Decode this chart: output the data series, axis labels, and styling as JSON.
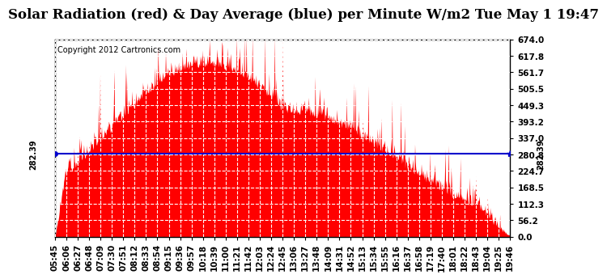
{
  "title": "Solar Radiation (red) & Day Average (blue) per Minute W/m2 Tue May 1 19:47",
  "copyright_text": "Copyright 2012 Cartronics.com",
  "avg_value": 282.39,
  "y_max": 674.0,
  "y_min": 0.0,
  "y_ticks": [
    0.0,
    56.2,
    112.3,
    168.5,
    224.7,
    280.8,
    337.0,
    393.2,
    449.3,
    505.5,
    561.7,
    617.8,
    674.0
  ],
  "fill_color": "#FF0000",
  "line_color": "#0000CC",
  "avg_label": "282.39",
  "background_color": "#FFFFFF",
  "plot_bg_color": "#FFFFFF",
  "x_labels": [
    "05:45",
    "06:06",
    "06:27",
    "06:48",
    "07:09",
    "07:30",
    "07:51",
    "08:12",
    "08:33",
    "08:54",
    "09:15",
    "09:36",
    "09:57",
    "10:18",
    "10:39",
    "11:00",
    "11:21",
    "11:42",
    "12:03",
    "12:24",
    "12:45",
    "13:06",
    "13:27",
    "13:48",
    "14:09",
    "14:31",
    "14:52",
    "15:13",
    "15:34",
    "15:55",
    "16:16",
    "16:37",
    "16:58",
    "17:19",
    "17:40",
    "18:01",
    "18:22",
    "18:43",
    "19:04",
    "19:25",
    "19:46"
  ],
  "title_fontsize": 12,
  "tick_fontsize": 7.5,
  "avg_fontsize": 7,
  "grid_color": "#AAAAAA",
  "border_color": "#000000"
}
